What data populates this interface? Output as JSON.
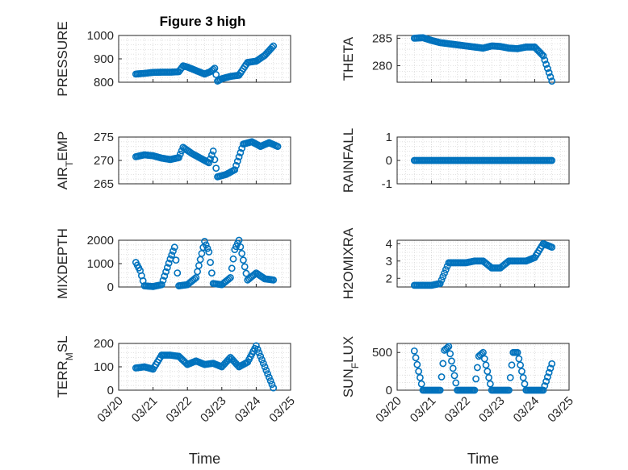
{
  "figure": {
    "title": "Figure 3 high",
    "xlabel": "Time",
    "marker_color": "#0072BD",
    "grid": "dotted"
  },
  "chart_data": [
    {
      "type": "scatter",
      "title": "Figure 3 high",
      "xlabel": "",
      "ylabel": "PRESSURE",
      "xlim": [
        "03/20",
        "03/25"
      ],
      "ylim": [
        800,
        1000
      ],
      "yticks": [
        "800",
        "900",
        "1000"
      ],
      "xticks": [
        "03/20",
        "03/21",
        "03/22",
        "03/23",
        "03/24",
        "03/25"
      ],
      "show_xticklabels": false,
      "x": [
        "03/20 12:00",
        "03/20 18:00",
        "03/21 00:00",
        "03/21 06:00",
        "03/21 12:00",
        "03/21 18:00",
        "03/21 21:00",
        "03/22 00:00",
        "03/22 06:00",
        "03/22 12:00",
        "03/22 16:00",
        "03/22 19:00",
        "03/22 21:00",
        "03/23 00:00",
        "03/23 06:00",
        "03/23 12:00",
        "03/23 18:00",
        "03/24 00:00",
        "03/24 06:00",
        "03/24 12:00"
      ],
      "y": [
        835,
        838,
        842,
        843,
        843,
        845,
        870,
        865,
        850,
        835,
        845,
        860,
        805,
        815,
        825,
        830,
        885,
        890,
        915,
        955
      ]
    },
    {
      "type": "scatter",
      "ylabel": "THETA",
      "xlabel": "",
      "xlim": [
        "03/20",
        "03/25"
      ],
      "ylim": [
        277,
        285.5
      ],
      "yticks": [
        "280",
        "285"
      ],
      "xticks": [
        "03/20",
        "03/21",
        "03/22",
        "03/23",
        "03/24",
        "03/25"
      ],
      "show_xticklabels": false,
      "x": [
        "03/20 12:00",
        "03/20 18:00",
        "03/21 00:00",
        "03/21 06:00",
        "03/21 12:00",
        "03/21 18:00",
        "03/22 00:00",
        "03/22 06:00",
        "03/22 12:00",
        "03/22 18:00",
        "03/23 00:00",
        "03/23 06:00",
        "03/23 12:00",
        "03/23 18:00",
        "03/24 00:00",
        "03/24 06:00",
        "03/24 12:00"
      ],
      "y": [
        285,
        285.1,
        284.6,
        284.2,
        284,
        283.8,
        283.6,
        283.4,
        283.2,
        283.6,
        283.5,
        283.2,
        283.1,
        283.4,
        283.4,
        281.8,
        277.2
      ]
    },
    {
      "type": "scatter",
      "ylabel": "AIR_TEMP",
      "xlabel": "",
      "xlim": [
        "03/20",
        "03/25"
      ],
      "ylim": [
        265,
        275
      ],
      "yticks": [
        "265",
        "270",
        "275"
      ],
      "xticks": [
        "03/20",
        "03/21",
        "03/22",
        "03/23",
        "03/24",
        "03/25"
      ],
      "show_xticklabels": false,
      "x": [
        "03/20 12:00",
        "03/20 18:00",
        "03/21 00:00",
        "03/21 06:00",
        "03/21 12:00",
        "03/21 18:00",
        "03/21 21:00",
        "03/22 03:00",
        "03/22 09:00",
        "03/22 15:00",
        "03/22 18:00",
        "03/22 21:00",
        "03/23 03:00",
        "03/23 09:00",
        "03/23 15:00",
        "03/23 21:00",
        "03/24 03:00",
        "03/24 09:00",
        "03/24 15:00"
      ],
      "y": [
        270.8,
        271.2,
        271,
        270.5,
        270.2,
        270.6,
        272.8,
        271.5,
        270.5,
        269.5,
        272,
        266.5,
        267,
        268,
        273.5,
        274,
        273,
        273.8,
        273
      ]
    },
    {
      "type": "scatter",
      "ylabel": "RAINFALL",
      "xlabel": "",
      "xlim": [
        "03/20",
        "03/25"
      ],
      "ylim": [
        -1,
        1
      ],
      "yticks": [
        "-1",
        "0",
        "1"
      ],
      "xticks": [
        "03/20",
        "03/21",
        "03/22",
        "03/23",
        "03/24",
        "03/25"
      ],
      "show_xticklabels": false,
      "x": [
        "03/20 12:00",
        "03/20 18:00",
        "03/21 00:00",
        "03/21 06:00",
        "03/21 12:00",
        "03/21 18:00",
        "03/22 00:00",
        "03/22 06:00",
        "03/22 12:00",
        "03/22 18:00",
        "03/23 00:00",
        "03/23 06:00",
        "03/23 12:00",
        "03/23 18:00",
        "03/24 00:00",
        "03/24 06:00",
        "03/24 12:00"
      ],
      "y": [
        0,
        0,
        0,
        0,
        0,
        0,
        0,
        0,
        0,
        0,
        0,
        0,
        0,
        0,
        0,
        0,
        0
      ]
    },
    {
      "type": "scatter",
      "ylabel": "MIXDEPTH",
      "xlabel": "",
      "xlim": [
        "03/20",
        "03/25"
      ],
      "ylim": [
        0,
        2000
      ],
      "yticks": [
        "0",
        "1000",
        "2000"
      ],
      "xticks": [
        "03/20",
        "03/21",
        "03/22",
        "03/23",
        "03/24",
        "03/25"
      ],
      "show_xticklabels": false,
      "x": [
        "03/20 12:00",
        "03/20 15:00",
        "03/20 18:00",
        "03/21 00:00",
        "03/21 06:00",
        "03/21 12:00",
        "03/21 15:00",
        "03/21 18:00",
        "03/22 00:00",
        "03/22 06:00",
        "03/22 12:00",
        "03/22 15:00",
        "03/22 18:00",
        "03/23 00:00",
        "03/23 06:00",
        "03/23 09:00",
        "03/23 12:00",
        "03/23 18:00",
        "03/24 00:00",
        "03/24 06:00",
        "03/24 12:00"
      ],
      "y": [
        1050,
        700,
        50,
        20,
        100,
        1200,
        1700,
        50,
        100,
        400,
        1950,
        1500,
        150,
        100,
        400,
        1600,
        2000,
        300,
        600,
        350,
        300
      ]
    },
    {
      "type": "scatter",
      "ylabel": "H2OMIXRA",
      "xlabel": "",
      "xlim": [
        "03/20",
        "03/25"
      ],
      "ylim": [
        1.5,
        4.2
      ],
      "yticks": [
        "2",
        "3",
        "4"
      ],
      "xticks": [
        "03/20",
        "03/21",
        "03/22",
        "03/23",
        "03/24",
        "03/25"
      ],
      "show_xticklabels": false,
      "x": [
        "03/20 12:00",
        "03/20 18:00",
        "03/21 00:00",
        "03/21 06:00",
        "03/21 09:00",
        "03/21 12:00",
        "03/21 18:00",
        "03/22 00:00",
        "03/22 06:00",
        "03/22 12:00",
        "03/22 18:00",
        "03/23 00:00",
        "03/23 06:00",
        "03/23 12:00",
        "03/23 18:00",
        "03/24 00:00",
        "03/24 06:00",
        "03/24 12:00"
      ],
      "y": [
        1.6,
        1.6,
        1.6,
        1.7,
        2.3,
        2.9,
        2.9,
        2.9,
        3.0,
        3.0,
        2.6,
        2.6,
        3.0,
        3.0,
        3.0,
        3.2,
        4.0,
        3.8
      ]
    },
    {
      "type": "scatter",
      "ylabel": "TERR_MSL",
      "xlabel": "Time",
      "xlim": [
        "03/20",
        "03/25"
      ],
      "ylim": [
        0,
        200
      ],
      "yticks": [
        "0",
        "100",
        "200"
      ],
      "xticks": [
        "03/20",
        "03/21",
        "03/22",
        "03/23",
        "03/24",
        "03/25"
      ],
      "show_xticklabels": true,
      "x": [
        "03/20 12:00",
        "03/20 18:00",
        "03/21 00:00",
        "03/21 06:00",
        "03/21 12:00",
        "03/21 18:00",
        "03/22 00:00",
        "03/22 06:00",
        "03/22 12:00",
        "03/22 18:00",
        "03/23 00:00",
        "03/23 06:00",
        "03/23 12:00",
        "03/23 18:00",
        "03/24 00:00",
        "03/24 06:00",
        "03/24 12:00"
      ],
      "y": [
        95,
        100,
        90,
        150,
        150,
        145,
        110,
        125,
        110,
        115,
        100,
        140,
        100,
        120,
        190,
        100,
        10
      ]
    },
    {
      "type": "scatter",
      "ylabel": "SUN_FLUX",
      "xlabel": "Time",
      "xlim": [
        "03/20",
        "03/25"
      ],
      "ylim": [
        0,
        620
      ],
      "yticks": [
        "0",
        "500"
      ],
      "xticks": [
        "03/20",
        "03/21",
        "03/22",
        "03/23",
        "03/24",
        "03/25"
      ],
      "show_xticklabels": true,
      "x": [
        "03/20 12:00",
        "03/20 15:00",
        "03/20 18:00",
        "03/21 00:00",
        "03/21 06:00",
        "03/21 09:00",
        "03/21 12:00",
        "03/21 18:00",
        "03/22 00:00",
        "03/22 06:00",
        "03/22 09:00",
        "03/22 12:00",
        "03/22 18:00",
        "03/23 00:00",
        "03/23 06:00",
        "03/23 09:00",
        "03/23 12:00",
        "03/23 18:00",
        "03/24 00:00",
        "03/24 06:00",
        "03/24 12:00"
      ],
      "y": [
        520,
        250,
        0,
        0,
        0,
        530,
        580,
        0,
        0,
        0,
        450,
        500,
        0,
        0,
        0,
        500,
        500,
        0,
        0,
        0,
        350
      ]
    }
  ]
}
